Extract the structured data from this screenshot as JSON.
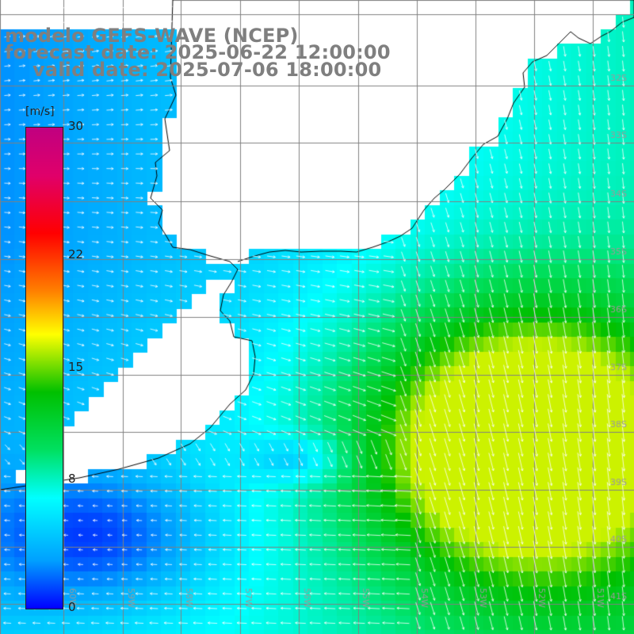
{
  "title": {
    "line1": "modelo GEFS-WAVE (NCEP)",
    "line2": "forecast date: 2025-06-22 12:00:00",
    "line3": "valid date: 2025-07-06 18:00:00"
  },
  "colorbar": {
    "unit": "[m/s]",
    "ticks": [
      {
        "label": "30",
        "value": 30
      },
      {
        "label": "22",
        "value": 22
      },
      {
        "label": "15",
        "value": 15
      },
      {
        "label": "8",
        "value": 8
      },
      {
        "label": "0",
        "value": 0
      }
    ],
    "range": [
      0,
      30
    ],
    "colors": [
      "#0000ff",
      "#00a0ff",
      "#00ffff",
      "#00e060",
      "#00c000",
      "#ffff00",
      "#ff8000",
      "#ff0000",
      "#e0006a",
      "#c00080"
    ]
  },
  "map": {
    "variable": "wind speed and direction",
    "land_color": "#ffffff",
    "coastline_color": "#000000",
    "grid_color": "#808080",
    "lon_labels": [
      "60W",
      "59W",
      "58W",
      "57W",
      "56W",
      "55W",
      "54W",
      "53W",
      "52W",
      "51W",
      "50W"
    ],
    "lat_labels": [
      "32S",
      "33S",
      "34S",
      "35S",
      "36S",
      "37S",
      "38S",
      "39S",
      "40S",
      "41S"
    ]
  }
}
